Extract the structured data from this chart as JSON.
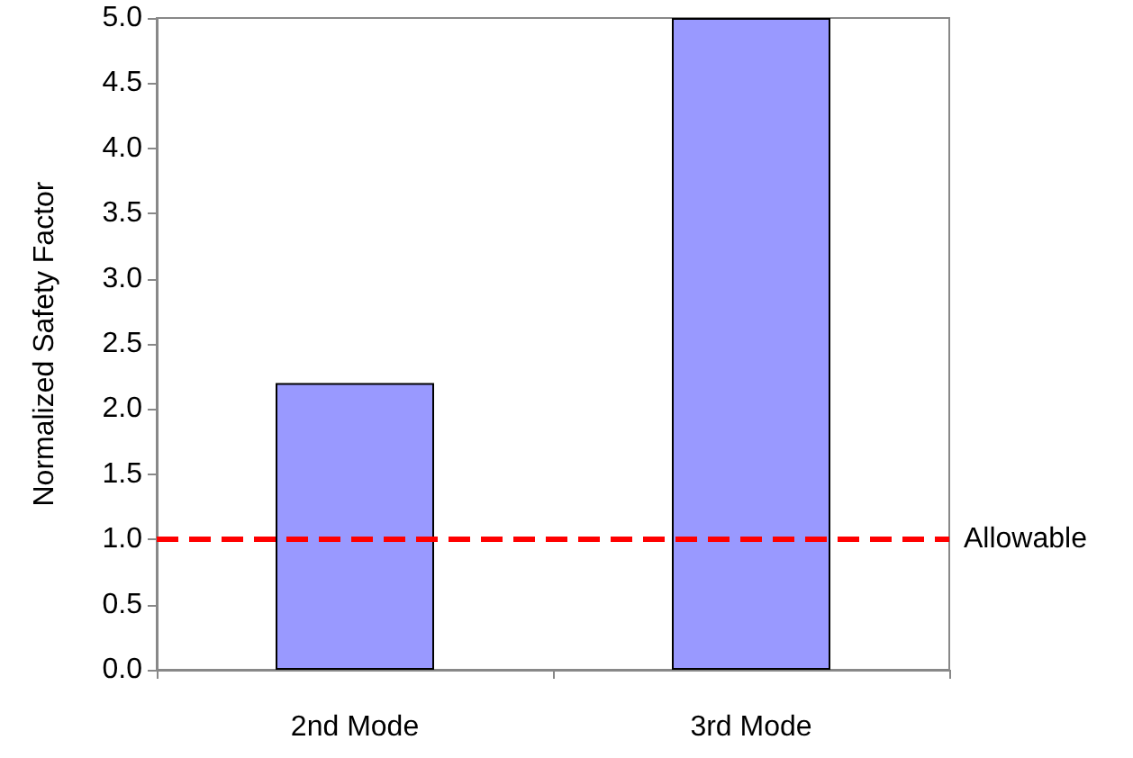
{
  "chart_data": {
    "type": "bar",
    "ylabel": "Normalized Safety Factor",
    "categories": [
      "2nd Mode",
      "3rd Mode"
    ],
    "values": [
      2.2,
      5.0
    ],
    "color": "#9999ff",
    "ylim": [
      0,
      5
    ],
    "yticks": [
      {
        "value": 0,
        "label": "0.0"
      },
      0.5,
      {
        "value": 1,
        "label": "1.0"
      },
      1.5,
      {
        "value": 2,
        "label": "2.0"
      },
      2.5,
      {
        "value": 3,
        "label": "3.0"
      },
      3.5,
      {
        "value": 4,
        "label": "4.0"
      },
      4.5,
      {
        "value": 5,
        "label": "5.0"
      }
    ],
    "ref_lines": [
      {
        "axis": "y",
        "value": 1,
        "label": "Allowable",
        "color": "#ff0000",
        "line_style": "dashed"
      }
    ],
    "grid": false
  }
}
